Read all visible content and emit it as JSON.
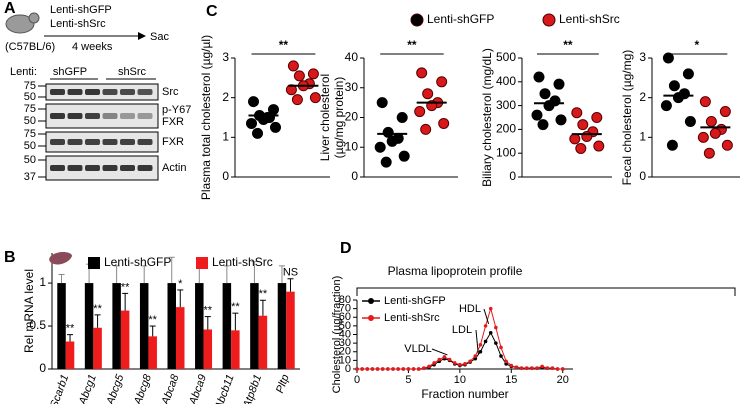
{
  "panel_labels": [
    "A",
    "B",
    "C",
    "D"
  ],
  "blot": {
    "schematic": {
      "treatments": [
        "Lenti-shGFP",
        "Lenti-shSrc"
      ],
      "duration": "4 weeks",
      "endpoint": "Sac",
      "strain": "(C57BL/6)"
    },
    "lenti_label": "Lenti:",
    "lanes": [
      "shGFP",
      "shSrc"
    ],
    "markers": [
      "75",
      "50",
      "75",
      "50",
      "75",
      "50",
      "50",
      "37"
    ],
    "rows": [
      [
        "Src"
      ],
      [
        "p-Y67",
        "FXR"
      ],
      [
        "FXR"
      ],
      [
        "Actin"
      ]
    ]
  },
  "chart_data": [
    {
      "type": "bar",
      "ylabel": "Rel mRNA level",
      "categories": [
        "Scarb1",
        "Abcg1",
        "Abcg5",
        "Abcg8",
        "Abca8",
        "Abca9",
        "Abcb11",
        "Atp8b1",
        "Pltp"
      ],
      "series": [
        {
          "name": "Lenti-shGFP",
          "color": "#000000",
          "values": [
            1,
            1,
            1,
            1,
            1,
            1,
            1,
            1,
            1
          ],
          "errors": [
            0.1,
            0.22,
            0.2,
            0.2,
            0.3,
            0.2,
            0.2,
            0.25,
            0.2
          ]
        },
        {
          "name": "Lenti-shSrc",
          "color": "#ee1c1c",
          "values": [
            0.32,
            0.48,
            0.68,
            0.38,
            0.72,
            0.46,
            0.45,
            0.62,
            0.9
          ],
          "errors": [
            0.08,
            0.15,
            0.2,
            0.12,
            0.2,
            0.15,
            0.2,
            0.18,
            0.15
          ]
        }
      ],
      "annotations": [
        "**",
        "**",
        "**",
        "**",
        "*",
        "**",
        "**",
        "**",
        "NS"
      ],
      "ylim": [
        0,
        1.35
      ],
      "yticks": [
        0,
        0.5,
        1
      ]
    },
    {
      "type": "scatter",
      "ylabel": [
        "Plasma total cholesterol (µg/µl)"
      ],
      "series": [
        {
          "name": "Lenti-shGFP",
          "color": "#000000",
          "values": [
            1.9,
            1.7,
            1.55,
            1.5,
            1.45,
            1.35,
            1.25,
            1.1,
            1.5
          ],
          "mean": 1.55
        },
        {
          "name": "Lenti-shSrc",
          "color": "#d7191c",
          "values": [
            2.8,
            2.6,
            2.55,
            2.35,
            2.3,
            2.2,
            2.0,
            1.95
          ],
          "mean": 2.3
        }
      ],
      "significance": "**",
      "ylim": [
        0,
        3
      ],
      "yticks": [
        0,
        1,
        2,
        3
      ]
    },
    {
      "type": "scatter",
      "ylabel": [
        "Liver cholesterol",
        "(µg/mg protein)"
      ],
      "series": [
        {
          "color": "#000000",
          "values": [
            25,
            20,
            15,
            13,
            12,
            10,
            7,
            5
          ],
          "mean": 14.5
        },
        {
          "color": "#d7191c",
          "values": [
            35,
            32,
            28,
            25,
            24,
            22,
            18,
            16
          ],
          "mean": 25
        }
      ],
      "significance": "**",
      "ylim": [
        0,
        40
      ],
      "yticks": [
        0,
        10,
        20,
        30,
        40
      ]
    },
    {
      "type": "scatter",
      "ylabel": [
        "Biliary cholesterol (mg/dL)"
      ],
      "series": [
        {
          "color": "#000000",
          "values": [
            420,
            390,
            350,
            320,
            300,
            260,
            240,
            220
          ],
          "mean": 310
        },
        {
          "color": "#d7191c",
          "values": [
            270,
            250,
            220,
            190,
            170,
            160,
            130,
            120
          ],
          "mean": 180
        }
      ],
      "significance": "**",
      "ylim": [
        0,
        500
      ],
      "yticks": [
        0,
        100,
        200,
        300,
        400,
        500
      ]
    },
    {
      "type": "scatter",
      "ylabel": [
        "Fecal cholesterol (µg/mg)"
      ],
      "series": [
        {
          "color": "#000000",
          "values": [
            3.0,
            2.6,
            2.3,
            2.1,
            2.0,
            1.8,
            1.4,
            0.8
          ],
          "mean": 2.05
        },
        {
          "color": "#d7191c",
          "values": [
            1.9,
            1.65,
            1.4,
            1.2,
            1.1,
            1.0,
            0.8,
            0.6
          ],
          "mean": 1.25
        }
      ],
      "significance": "*",
      "ylim": [
        0,
        3
      ],
      "yticks": [
        0,
        1,
        2,
        3
      ]
    },
    {
      "type": "line",
      "title": "Plasma lipoprotein profile",
      "xlabel": "Fraction number",
      "ylabel": "Cholesterol (µg/fraction)",
      "x": [
        0,
        0.5,
        1,
        1.5,
        2,
        2.5,
        3,
        3.5,
        4,
        4.5,
        5,
        5.5,
        6,
        6.5,
        7,
        7.5,
        8,
        8.5,
        9,
        9.5,
        10,
        10.5,
        11,
        11.5,
        12,
        12.5,
        13,
        13.5,
        14,
        14.5,
        15,
        15.5,
        16,
        16.5,
        17,
        17.5,
        18,
        18.5,
        19,
        19.5,
        20
      ],
      "series": [
        {
          "name": "Lenti-shGFP",
          "color": "#000000",
          "values": [
            0,
            0,
            0,
            0,
            0,
            0,
            0,
            0,
            0,
            0,
            0,
            0,
            0,
            1,
            2,
            5,
            9,
            12,
            10,
            6,
            4,
            5,
            8,
            12,
            20,
            32,
            42,
            30,
            15,
            6,
            3,
            2,
            1,
            1,
            1,
            1,
            2,
            1,
            1,
            0,
            0
          ]
        },
        {
          "name": "Lenti-shSrc",
          "color": "#e41a1c",
          "values": [
            0,
            0,
            0,
            0,
            0,
            0,
            0,
            0,
            0,
            0,
            0,
            0,
            0,
            1,
            3,
            7,
            11,
            14,
            11,
            7,
            5,
            6,
            9,
            15,
            28,
            50,
            70,
            48,
            25,
            9,
            4,
            2,
            1,
            1,
            1,
            1,
            3,
            1,
            1,
            0,
            0
          ]
        }
      ],
      "annotations": [
        "VLDL",
        "LDL",
        "HDL"
      ],
      "xlim": [
        0,
        21
      ],
      "xticks": [
        0,
        5,
        10,
        15,
        20
      ],
      "ylim": [
        0,
        80
      ],
      "yticks": [
        0,
        10,
        20,
        30,
        40,
        50,
        60,
        70,
        80
      ]
    }
  ]
}
